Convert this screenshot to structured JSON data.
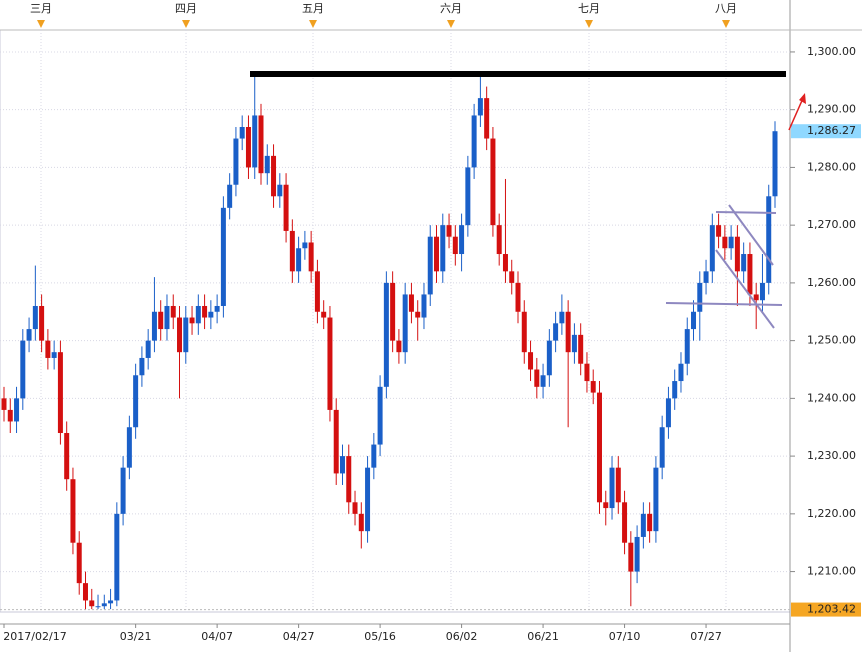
{
  "chart_data": {
    "type": "candlestick",
    "months": [
      "三月",
      "四月",
      "五月",
      "六月",
      "七月",
      "八月"
    ],
    "categories": [
      "2017/02/17",
      null,
      null,
      null,
      null,
      null,
      null,
      null,
      null,
      null,
      null,
      null,
      null,
      null,
      null,
      null,
      null,
      null,
      null,
      null,
      null,
      "03/21",
      null,
      null,
      null,
      null,
      null,
      null,
      null,
      null,
      null,
      null,
      null,
      null,
      "04/07",
      null,
      null,
      null,
      null,
      null,
      null,
      null,
      null,
      null,
      null,
      null,
      null,
      "04/27",
      null,
      null,
      null,
      null,
      null,
      null,
      null,
      null,
      null,
      null,
      null,
      null,
      "05/16",
      null,
      null,
      null,
      null,
      null,
      null,
      null,
      null,
      null,
      null,
      null,
      null,
      "06/02",
      null,
      null,
      null,
      null,
      null,
      null,
      null,
      null,
      null,
      null,
      null,
      null,
      "06/21",
      null,
      null,
      null,
      null,
      null,
      null,
      null,
      null,
      null,
      null,
      null,
      null,
      "07/10",
      null,
      null,
      null,
      null,
      null,
      null,
      null,
      null,
      null,
      null,
      null,
      null,
      "07/27",
      null,
      null,
      null,
      null,
      null,
      null,
      null,
      null,
      null,
      null,
      null
    ],
    "open": [
      1240,
      1238,
      1236,
      1240,
      1250,
      1252,
      1256,
      1250,
      1247,
      1248,
      1234,
      1226,
      1215,
      1208,
      1205,
      1204,
      1204,
      1204.5,
      1205,
      1220,
      1228,
      1235,
      1244,
      1247,
      1250,
      1255,
      1252,
      1256,
      1254,
      1248,
      1254,
      1253,
      1256,
      1254,
      1255,
      1256,
      1273,
      1277,
      1285,
      1287,
      1280,
      1289,
      1279,
      1282,
      1275,
      1277,
      1269,
      1262,
      1266,
      1267,
      1262,
      1255,
      1254,
      1238,
      1227,
      1230,
      1222,
      1220,
      1217,
      1228,
      1232,
      1242,
      1260,
      1250,
      1248,
      1258,
      1255,
      1254,
      1258,
      1268,
      1262,
      1270,
      1268,
      1265,
      1270,
      1280,
      1289,
      1292,
      1285,
      1270,
      1265,
      1262,
      1260,
      1255,
      1248,
      1245,
      1242,
      1244,
      1250,
      1253,
      1255,
      1248,
      1251,
      1246,
      1243,
      1241,
      1222,
      1221,
      1228,
      1222,
      1215,
      1210,
      1216,
      1220,
      1217,
      1228,
      1235,
      1240,
      1243,
      1246,
      1252,
      1255,
      1260,
      1262,
      1270,
      1268,
      1266,
      1268,
      1262,
      1265,
      1258,
      1257,
      1260,
      1275
    ],
    "high": [
      1242,
      1240,
      1242,
      1252,
      1254,
      1263,
      1258,
      1252,
      1250,
      1250,
      1236,
      1228,
      1217,
      1210,
      1207,
      1206,
      1206,
      1207,
      1222,
      1230,
      1237,
      1246,
      1249,
      1252,
      1261,
      1257,
      1258,
      1258,
      1256,
      1256,
      1256,
      1258,
      1258,
      1257,
      1258,
      1275,
      1279,
      1287,
      1289,
      1289,
      1296,
      1291,
      1284,
      1284,
      1279,
      1279,
      1271,
      1268,
      1269,
      1269,
      1264,
      1257,
      1256,
      1240,
      1232,
      1232,
      1224,
      1222,
      1230,
      1234,
      1244,
      1262,
      1262,
      1252,
      1260,
      1260,
      1257,
      1260,
      1270,
      1270,
      1272,
      1272,
      1270,
      1272,
      1282,
      1291,
      1296,
      1294,
      1287,
      1272,
      1278,
      1264,
      1262,
      1257,
      1250,
      1247,
      1246,
      1252,
      1255,
      1258,
      1257,
      1253,
      1253,
      1248,
      1245,
      1243,
      1224,
      1230,
      1230,
      1224,
      1217,
      1218,
      1222,
      1222,
      1230,
      1237,
      1242,
      1245,
      1248,
      1254,
      1257,
      1262,
      1264,
      1272,
      1272,
      1270,
      1270,
      1270,
      1267,
      1267,
      1260,
      1265,
      1277,
      1288
    ],
    "low": [
      1236,
      1234,
      1234,
      1238,
      1248,
      1250,
      1248,
      1245,
      1245,
      1232,
      1224,
      1213,
      1206,
      1203.42,
      1203.5,
      1203.5,
      1203.5,
      1203.5,
      1204,
      1218,
      1226,
      1233,
      1242,
      1245,
      1248,
      1250,
      1250,
      1252,
      1240,
      1246,
      1251,
      1251,
      1252,
      1252,
      1253,
      1254,
      1271,
      1275,
      1283,
      1278,
      1278,
      1277,
      1277,
      1273,
      1273,
      1267,
      1260,
      1260,
      1264,
      1260,
      1253,
      1252,
      1236,
      1225,
      1225,
      1220,
      1218,
      1214,
      1215,
      1226,
      1230,
      1240,
      1248,
      1246,
      1246,
      1253,
      1250,
      1252,
      1256,
      1260,
      1260,
      1266,
      1263,
      1262,
      1268,
      1278,
      1287,
      1283,
      1268,
      1263,
      1260,
      1258,
      1253,
      1246,
      1243,
      1240,
      1240,
      1242,
      1248,
      1251,
      1235,
      1246,
      1244,
      1241,
      1239,
      1220,
      1218,
      1219,
      1220,
      1213,
      1204,
      1208,
      1214,
      1215,
      1215,
      1226,
      1233,
      1238,
      1241,
      1244,
      1250,
      1250,
      1258,
      1260,
      1266,
      1264,
      1264,
      1256,
      1260,
      1256,
      1252,
      1255,
      1258,
      1273
    ],
    "close": [
      1238,
      1236,
      1240,
      1250,
      1252,
      1256,
      1250,
      1247,
      1248,
      1234,
      1226,
      1215,
      1208,
      1205,
      1204,
      1204,
      1204.5,
      1205,
      1220,
      1228,
      1235,
      1244,
      1247,
      1250,
      1255,
      1252,
      1256,
      1254,
      1248,
      1254,
      1253,
      1256,
      1254,
      1255,
      1256,
      1273,
      1277,
      1285,
      1287,
      1280,
      1289,
      1279,
      1282,
      1275,
      1277,
      1269,
      1262,
      1266,
      1267,
      1262,
      1255,
      1254,
      1238,
      1227,
      1230,
      1222,
      1220,
      1217,
      1228,
      1232,
      1242,
      1260,
      1250,
      1248,
      1258,
      1255,
      1254,
      1258,
      1268,
      1262,
      1270,
      1268,
      1265,
      1270,
      1280,
      1289,
      1292,
      1285,
      1270,
      1265,
      1262,
      1260,
      1255,
      1248,
      1245,
      1242,
      1244,
      1250,
      1253,
      1255,
      1248,
      1251,
      1246,
      1243,
      1241,
      1222,
      1221,
      1228,
      1222,
      1215,
      1210,
      1216,
      1220,
      1217,
      1228,
      1235,
      1240,
      1243,
      1246,
      1252,
      1255,
      1260,
      1262,
      1270,
      1268,
      1266,
      1268,
      1262,
      1265,
      1258,
      1257,
      1260,
      1275,
      1286.27
    ],
    "up_color": "#1a5fc8",
    "down_color": "#d41010",
    "ylim": [
      1203,
      1303.8
    ],
    "yticks": [
      {
        "value": 1210,
        "label": "1,210.00"
      },
      {
        "value": 1220,
        "label": "1,220.00"
      },
      {
        "value": 1230,
        "label": "1,230.00"
      },
      {
        "value": 1240,
        "label": "1,240.00"
      },
      {
        "value": 1250,
        "label": "1,250.00"
      },
      {
        "value": 1260,
        "label": "1,260.00"
      },
      {
        "value": 1270,
        "label": "1,270.00"
      },
      {
        "value": 1280,
        "label": "1,280.00"
      },
      {
        "value": 1290,
        "label": "1,290.00"
      },
      {
        "value": 1300,
        "label": "1,300.00"
      }
    ],
    "last_price": {
      "value": 1286.27,
      "label": "1,286.27"
    },
    "low_price": {
      "value": 1203.42,
      "label": "1,203.42"
    },
    "grid": true
  }
}
